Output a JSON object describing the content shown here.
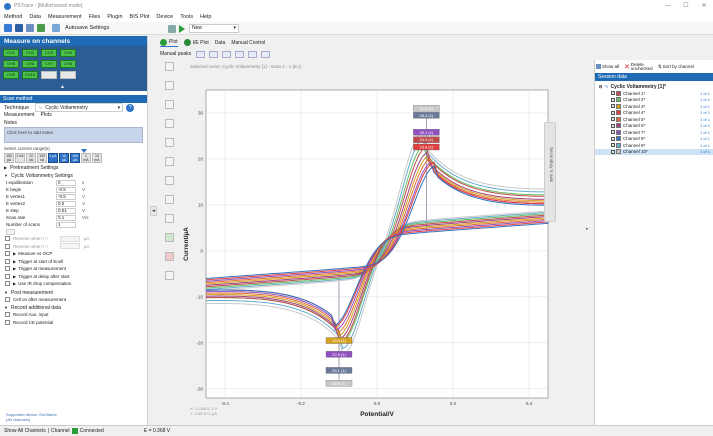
{
  "window": {
    "title": "PSTrace - [Multichannel mode]",
    "controls": [
      "—",
      "☐",
      "✕"
    ]
  },
  "menu": [
    "Method",
    "Data",
    "Measurement",
    "Files",
    "Plugin",
    "BIS Plot",
    "Device",
    "Tools",
    "Help"
  ],
  "toolbar": {
    "autosave_label": "Autosave Settings",
    "run_select": "New"
  },
  "channels_panel": {
    "title": "Measure on channels",
    "rows": [
      [
        {
          "l": "CH1",
          "on": true
        },
        {
          "l": "CH2",
          "on": true
        },
        {
          "l": "CH3",
          "on": true
        },
        {
          "l": "CH4",
          "on": true
        }
      ],
      [
        {
          "l": "CH5",
          "on": true
        },
        {
          "l": "CH6",
          "on": true
        },
        {
          "l": "CH7",
          "on": true
        },
        {
          "l": "CH8",
          "on": true
        }
      ],
      [
        {
          "l": "CH9",
          "on": true
        },
        {
          "l": "CH10",
          "on": true
        },
        {
          "l": "",
          "on": false
        },
        {
          "l": "",
          "on": false
        }
      ]
    ],
    "collapse": "▲"
  },
  "method": {
    "header": "Scan method",
    "technique_label": "Technique",
    "technique_value": "Cyclic Voltammetry",
    "help": "?",
    "subtabs": [
      "Measurement",
      "Plots"
    ],
    "notes_label": "Notes",
    "notes_value": "Click here to add notes",
    "range_label": "Select current range(s)",
    "ranges": [
      "100 pA",
      "1 nA",
      "10 nA",
      "100 nA",
      "1 µA",
      "10 µA",
      "100 µA",
      "1 mA",
      "10 mA"
    ],
    "active_ranges": [
      4,
      5,
      6
    ],
    "sections": {
      "pretreatment": "Pretreatment Settings",
      "cv": "Cyclic Voltammetry Settings"
    },
    "params": [
      {
        "label": "t equilibration",
        "value": "0",
        "unit": "s"
      },
      {
        "label": "E begin",
        "value": "-0.5",
        "unit": "V"
      },
      {
        "label": "E vertex1",
        "value": "-0.5",
        "unit": "V"
      },
      {
        "label": "E vertex2",
        "value": "0.5",
        "unit": "V"
      },
      {
        "label": "E step",
        "value": "0.01",
        "unit": "V"
      },
      {
        "label": "Scan rate",
        "value": "0.1",
        "unit": "V/s"
      },
      {
        "label": "Number of scans",
        "value": "1",
        "unit": ""
      }
    ],
    "checks": [
      {
        "label": "Reverse when i >",
        "grey": true,
        "value": "",
        "unit": "µA"
      },
      {
        "label": "Reverse when i <",
        "grey": true,
        "value": "",
        "unit": "µA"
      },
      {
        "label": "Measure vs OCP",
        "grey": false
      },
      {
        "label": "Trigger at start of Ecell",
        "grey": false
      },
      {
        "label": "Trigger at measurement",
        "grey": false
      },
      {
        "label": "Trigger at delay after start",
        "grey": false
      },
      {
        "label": "Use IR drop compensation",
        "grey": false
      }
    ],
    "post_section": "Post measurement",
    "post_check": "Cell on after measurement",
    "record_section": "Record additional data",
    "record_checks": [
      "Record Aux. input",
      "Record CE potential"
    ],
    "footer": [
      "Supported device: EmStat4x",
      "(All channels)"
    ]
  },
  "tabs": [
    "Plot",
    "I/E Plot",
    "Data",
    "Manual Control"
  ],
  "plot_toolbar": {
    "label": "Manual peaks"
  },
  "chart_header": {
    "selected_scan": "Selected curve: Cyclic Voltammetry [1] - Scan 1 - 1 (E,I)",
    "secondary_axis": "Secondary X axis"
  },
  "readout": [
    "X: -0.265 E-1 V",
    "Y: 2.65 E+1 µA"
  ],
  "chart_data": {
    "type": "line",
    "xlabel": "Potential/V",
    "ylabel": "Current/µA",
    "xlim": [
      -0.45,
      0.45
    ],
    "ylim": [
      -32,
      35
    ],
    "xticks": [
      -0.4,
      -0.2,
      0.0,
      0.2,
      0.4
    ],
    "xtick_labels": [
      "-0.4",
      "-0.2",
      "0.0",
      "0.2",
      "0.4"
    ],
    "yticks": [
      -30,
      -20,
      -10,
      0,
      10,
      20,
      30
    ],
    "ytick_labels": [
      "-30",
      "-20",
      "-10",
      "0",
      "10",
      "20",
      "30"
    ],
    "grid": true,
    "oxidation_marker_x": 0.13,
    "reduction_marker_x": -0.1,
    "series": [
      {
        "color": "#c9c9c9",
        "ipa": 31.0,
        "ipc": -28.0
      },
      {
        "color": "#66aacc",
        "ipa": 29.5,
        "ipc": -26.5
      },
      {
        "color": "#66c066",
        "ipa": 28.0,
        "ipc": -25.0
      },
      {
        "color": "#c04a4a",
        "ipa": 27.0,
        "ipc": -24.5
      },
      {
        "color": "#a04080",
        "ipa": 25.5,
        "ipc": -23.5
      },
      {
        "color": "#d4a020",
        "ipa": 24.5,
        "ipc": -22.5
      },
      {
        "color": "#e07030",
        "ipa": 23.5,
        "ipc": -21.5
      },
      {
        "color": "#9050c0",
        "ipa": 22.5,
        "ipc": -20.5
      },
      {
        "color": "#e04040",
        "ipa": 22.0,
        "ipc": -19.5
      },
      {
        "color": "#3070c0",
        "ipa": 21.0,
        "ipc": -19.0
      }
    ],
    "peak_labels_top": [
      {
        "text": "31.0 (1)",
        "color": "#c9c9c9",
        "y": 31.0
      },
      {
        "text": "28.4 (1)",
        "color": "#6c7a9a",
        "y": 29.5
      },
      {
        "text": "25.1 (1)",
        "color": "#9050c0",
        "y": 25.8
      },
      {
        "text": "24.9 (1)",
        "color": "#c04a4a",
        "y": 24.2
      },
      {
        "text": "23.4 (1)",
        "color": "#e04040",
        "y": 22.6
      }
    ],
    "peak_labels_bottom": [
      {
        "text": "19.5 (1)",
        "color": "#d4a020",
        "y": -19.5
      },
      {
        "text": "22.9 (1)",
        "color": "#9050c0",
        "y": -22.5
      },
      {
        "text": "25.1 (1)",
        "color": "#6c7a9a",
        "y": -26.0
      },
      {
        "text": "28.0 (1)",
        "color": "#c9c9c9",
        "y": -28.8
      }
    ]
  },
  "right_panel": {
    "buttons": [
      "Show all",
      "Delete unchecked",
      "Sort by channel"
    ],
    "header": "Session data",
    "root": "Cyclic Voltammetry [1]*",
    "items": [
      {
        "label": "Channel 1*",
        "color": "#c04a4a",
        "val": "1 of 1"
      },
      {
        "label": "Channel 2*",
        "color": "#66c066",
        "val": "1 of 1"
      },
      {
        "label": "Channel 3*",
        "color": "#d4a020",
        "val": "1 of 1"
      },
      {
        "label": "Channel 4*",
        "color": "#e04040",
        "val": "1 of 1"
      },
      {
        "label": "Channel 5*",
        "color": "#e07030",
        "val": "1 of 1"
      },
      {
        "label": "Channel 6*",
        "color": "#a04080",
        "val": "1 of 1"
      },
      {
        "label": "Channel 7*",
        "color": "#9050c0",
        "val": "1 of 1"
      },
      {
        "label": "Channel 8*",
        "color": "#3070c0",
        "val": "1 of 1"
      },
      {
        "label": "Channel 9*",
        "color": "#66aacc",
        "val": "1 of 1"
      },
      {
        "label": "Channel 10*",
        "color": "#c9c9c9",
        "val": "1 of 1"
      }
    ]
  },
  "status": {
    "left": "Show All Channels",
    "channel_label": "Channel",
    "connected": "Connected",
    "value": "E = 0.368 V"
  }
}
